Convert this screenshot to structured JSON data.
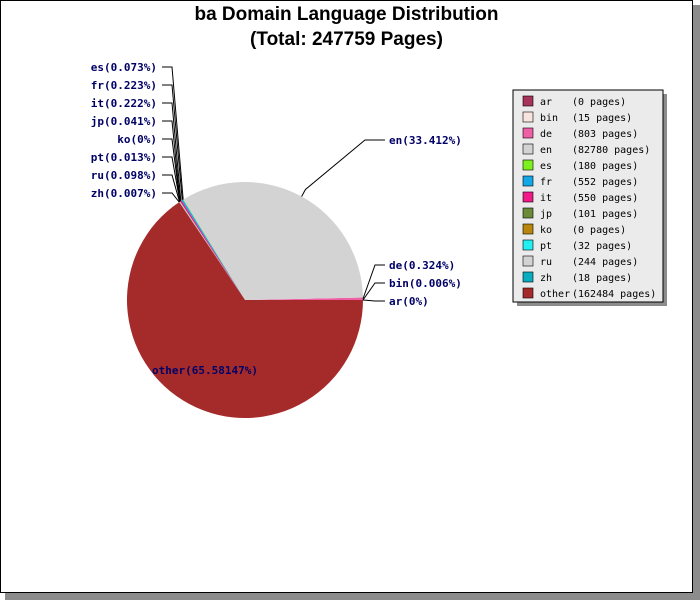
{
  "chart_data": {
    "type": "pie",
    "title": "ba Domain Language Distribution",
    "subtitle": "(Total: 247759 Pages)",
    "start_angle_deg": 0,
    "direction": "counterclockwise",
    "slices": [
      {
        "name": "ar",
        "pages": 0,
        "label": "ar(0%)",
        "legend": "(0 pages)",
        "color": "#a8325a"
      },
      {
        "name": "bin",
        "pages": 15,
        "label": "bin(0.006%)",
        "legend": "(15 pages)",
        "color": "#f7e4dc"
      },
      {
        "name": "de",
        "pages": 803,
        "label": "de(0.324%)",
        "legend": "(803 pages)",
        "color": "#f05fa6"
      },
      {
        "name": "en",
        "pages": 82780,
        "label": "en(33.412%)",
        "legend": "(82780 pages)",
        "color": "#d3d3d3"
      },
      {
        "name": "es",
        "pages": 180,
        "label": "es(0.073%)",
        "legend": "(180 pages)",
        "color": "#7df020"
      },
      {
        "name": "fr",
        "pages": 552,
        "label": "fr(0.223%)",
        "legend": "(552 pages)",
        "color": "#12a8e8"
      },
      {
        "name": "it",
        "pages": 550,
        "label": "it(0.222%)",
        "legend": "(550 pages)",
        "color": "#f01a8a"
      },
      {
        "name": "jp",
        "pages": 101,
        "label": "jp(0.041%)",
        "legend": "(101 pages)",
        "color": "#6b8a3a"
      },
      {
        "name": "ko",
        "pages": 0,
        "label": "ko(0%)",
        "legend": "(0 pages)",
        "color": "#b8860b"
      },
      {
        "name": "pt",
        "pages": 32,
        "label": "pt(0.013%)",
        "legend": "(32 pages)",
        "color": "#20f0f0"
      },
      {
        "name": "ru",
        "pages": 244,
        "label": "ru(0.098%)",
        "legend": "(244 pages)",
        "color": "#d3d3d3"
      },
      {
        "name": "zh",
        "pages": 18,
        "label": "zh(0.007%)",
        "legend": "(18 pages)",
        "color": "#0aacc0"
      },
      {
        "name": "other",
        "pages": 162484,
        "label": "other(65.58147%)",
        "legend": "(162484 pages)",
        "color": "#a52a2a"
      }
    ],
    "legend_position": "right"
  }
}
